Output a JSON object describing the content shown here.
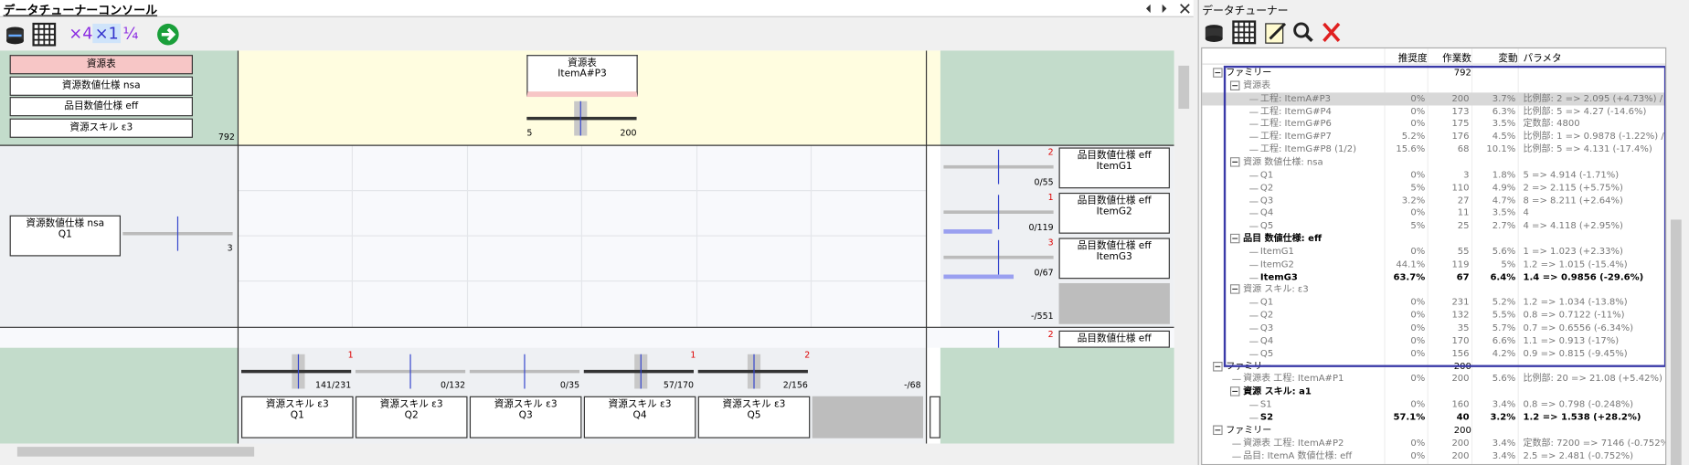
{
  "console": {
    "title": "データチューナーコンソール",
    "toolbar": [
      "×4",
      "×1",
      "¹⁄₄"
    ],
    "resource_list": {
      "items": [
        "資源表",
        "資源数値仕様 nsa",
        "品目数値仕様 eff",
        "資源スキル ε3"
      ],
      "count": "792"
    },
    "top_node": {
      "lines": [
        "資源表",
        "ItemA#P3"
      ],
      "min": "5",
      "max": "200"
    },
    "side_node": {
      "lines": [
        "資源数値仕様 nsa",
        "Q1"
      ],
      "value": "3"
    },
    "right_nodes": [
      {
        "lines": [
          "品目数値仕様 eff",
          "ItemG1"
        ],
        "badge": "2",
        "count": "0/55"
      },
      {
        "lines": [
          "品目数値仕様 eff",
          "ItemG2"
        ],
        "badge": "1",
        "count": "0/119"
      },
      {
        "lines": [
          "品目数値仕様 eff",
          "ItemG3"
        ],
        "badge": "3",
        "count": "0/67"
      }
    ],
    "right_total": "-/551",
    "right_partial": {
      "lines": [
        "品目数値仕様 eff"
      ],
      "badge": "2"
    },
    "bottom_nodes": [
      {
        "lines": [
          "資源スキル ε3",
          "Q1"
        ],
        "badge": "1",
        "count": "141/231"
      },
      {
        "lines": [
          "資源スキル ε3",
          "Q2"
        ],
        "count": "0/132"
      },
      {
        "lines": [
          "資源スキル ε3",
          "Q3"
        ],
        "count": "0/35"
      },
      {
        "lines": [
          "資源スキル ε3",
          "Q4"
        ],
        "badge": "1",
        "count": "57/170"
      },
      {
        "lines": [
          "資源スキル ε3",
          "Q5"
        ],
        "badge": "2",
        "count": "2/156"
      }
    ],
    "bottom_total": "-/68"
  },
  "tuner": {
    "title": "データチューナー",
    "columns": [
      "推奨度",
      "作業数",
      "変動",
      "パラメタ"
    ],
    "families": [
      {
        "label": "ファミリー",
        "work": "792",
        "groups": [
          {
            "label": "資源表",
            "rows": [
              {
                "label": "工程: ItemA#P3",
                "cells": [
                  "0%",
                  "200",
                  "3.7%",
                  "比例部: 2 => 2.095 (+4.73%) / "
                ]
              },
              {
                "label": "工程: ItemG#P4",
                "cells": [
                  "0%",
                  "173",
                  "6.3%",
                  "比例部: 5 => 4.27 (-14.6%)"
                ]
              },
              {
                "label": "工程: ItemG#P6",
                "cells": [
                  "0%",
                  "175",
                  "3.5%",
                  "定数部: 4800"
                ]
              },
              {
                "label": "工程: ItemG#P7",
                "cells": [
                  "5.2%",
                  "176",
                  "4.5%",
                  "比例部: 1 => 0.9878 (-1.22%) /"
                ]
              },
              {
                "label": "工程: ItemG#P8 (1/2)",
                "cells": [
                  "15.6%",
                  "68",
                  "10.1%",
                  "比例部: 5 => 4.131 (-17.4%)"
                ]
              }
            ]
          },
          {
            "label": "資源 数値仕様: nsa",
            "rows": [
              {
                "label": "Q1",
                "cells": [
                  "0%",
                  "3",
                  "1.8%",
                  "5 => 4.914 (-1.71%)"
                ]
              },
              {
                "label": "Q2",
                "cells": [
                  "5%",
                  "110",
                  "4.9%",
                  "2 => 2.115 (+5.75%)"
                ]
              },
              {
                "label": "Q3",
                "cells": [
                  "3.2%",
                  "27",
                  "4.7%",
                  "8 => 8.211 (+2.64%)"
                ]
              },
              {
                "label": "Q4",
                "cells": [
                  "0%",
                  "11",
                  "3.5%",
                  "4"
                ]
              },
              {
                "label": "Q5",
                "cells": [
                  "5%",
                  "25",
                  "2.7%",
                  "4 => 4.118 (+2.95%)"
                ]
              }
            ]
          },
          {
            "label": "品目 数値仕様: eff",
            "bold": true,
            "rows": [
              {
                "label": "ItemG1",
                "cells": [
                  "0%",
                  "55",
                  "5.6%",
                  "1 => 1.023 (+2.33%)"
                ]
              },
              {
                "label": "ItemG2",
                "cells": [
                  "44.1%",
                  "119",
                  "5%",
                  "1.2 => 1.015 (-15.4%)"
                ]
              },
              {
                "label": "ItemG3",
                "bold": true,
                "cells": [
                  "63.7%",
                  "67",
                  "6.4%",
                  "1.4 => 0.9856 (-29.6%)"
                ]
              }
            ]
          },
          {
            "label": "資源 スキル: ε3",
            "rows": [
              {
                "label": "Q1",
                "cells": [
                  "0%",
                  "231",
                  "5.2%",
                  "1.2 => 1.034 (-13.8%)"
                ]
              },
              {
                "label": "Q2",
                "cells": [
                  "0%",
                  "132",
                  "5.5%",
                  "0.8 => 0.7122 (-11%)"
                ]
              },
              {
                "label": "Q3",
                "cells": [
                  "0%",
                  "35",
                  "5.7%",
                  "0.7 => 0.6556 (-6.34%)"
                ]
              },
              {
                "label": "Q4",
                "cells": [
                  "0%",
                  "170",
                  "6.6%",
                  "1.1 => 0.913 (-17%)"
                ]
              },
              {
                "label": "Q5",
                "cells": [
                  "0%",
                  "156",
                  "4.2%",
                  "0.9 => 0.815 (-9.45%)"
                ]
              }
            ]
          }
        ]
      },
      {
        "label": "ファミリー",
        "work": "200",
        "rows": [
          {
            "label": "資源表 工程: ItemA#P1",
            "cells": [
              "0%",
              "200",
              "5.6%",
              "比例部: 20 => 21.08 (+5.42%)"
            ]
          }
        ],
        "groups": [
          {
            "label": "資源 スキル: a1",
            "bold": true,
            "rows": [
              {
                "label": "S1",
                "cells": [
                  "0%",
                  "160",
                  "3.4%",
                  "0.8 => 0.798 (-0.248%)"
                ]
              },
              {
                "label": "S2",
                "bold": true,
                "cells": [
                  "57.1%",
                  "40",
                  "3.2%",
                  "1.2 => 1.538 (+28.2%)"
                ]
              }
            ]
          }
        ]
      },
      {
        "label": "ファミリー",
        "work": "200",
        "rows": [
          {
            "label": "資源表 工程: ItemA#P2",
            "cells": [
              "0%",
              "200",
              "3.4%",
              "定数部: 7200 => 7146 (-0.752%"
            ]
          },
          {
            "label": "品目: ItemA 数値仕様: eff",
            "cells": [
              "0%",
              "200",
              "3.4%",
              "2.5 => 2.481 (-0.752%)"
            ]
          }
        ]
      }
    ]
  }
}
